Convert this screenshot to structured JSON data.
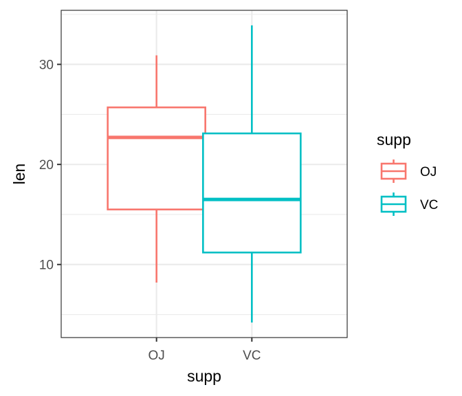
{
  "chart_data": {
    "type": "box",
    "xlabel": "supp",
    "ylabel": "len",
    "categories": [
      "OJ",
      "VC"
    ],
    "ylim": [
      2.7,
      35.4
    ],
    "y_ticks": [
      10,
      20,
      30
    ],
    "y_tick_labels": [
      "10",
      "20",
      "30"
    ],
    "series": [
      {
        "name": "OJ",
        "color": "#F8766D",
        "min": 8.2,
        "q1": 15.5,
        "median": 22.7,
        "q3": 25.7,
        "max": 30.9
      },
      {
        "name": "VC",
        "color": "#00BFC4",
        "min": 4.2,
        "q1": 11.2,
        "median": 16.5,
        "q3": 23.1,
        "max": 33.9
      }
    ],
    "grid": true,
    "legend": {
      "title": "supp",
      "position": "right",
      "entries": [
        "OJ",
        "VC"
      ]
    }
  }
}
